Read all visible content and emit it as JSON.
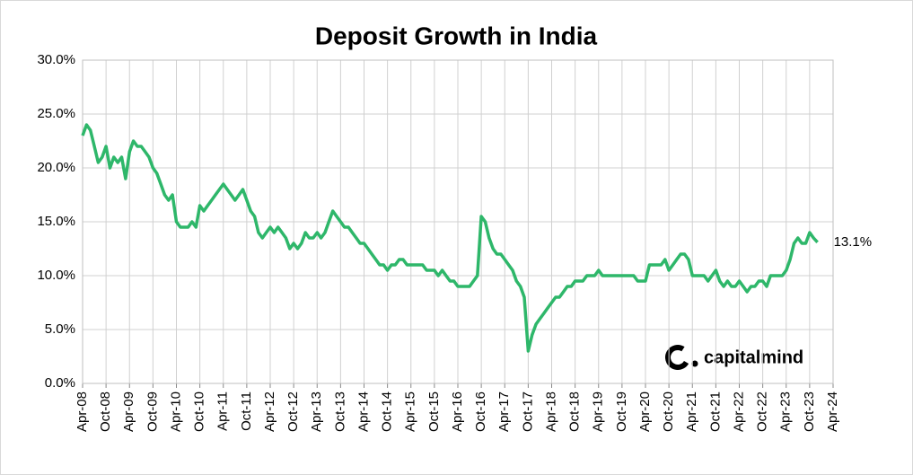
{
  "chart_data": {
    "type": "line",
    "title": "Deposit Growth in India",
    "x": [
      "2008-04",
      "2008-05",
      "2008-06",
      "2008-07",
      "2008-08",
      "2008-09",
      "2008-10",
      "2008-11",
      "2008-12",
      "2009-01",
      "2009-02",
      "2009-03",
      "2009-04",
      "2009-05",
      "2009-06",
      "2009-07",
      "2009-08",
      "2009-09",
      "2009-10",
      "2009-11",
      "2009-12",
      "2010-01",
      "2010-02",
      "2010-03",
      "2010-04",
      "2010-05",
      "2010-06",
      "2010-07",
      "2010-08",
      "2010-09",
      "2010-10",
      "2010-11",
      "2010-12",
      "2011-01",
      "2011-02",
      "2011-03",
      "2011-04",
      "2011-05",
      "2011-06",
      "2011-07",
      "2011-08",
      "2011-09",
      "2011-10",
      "2011-11",
      "2011-12",
      "2012-01",
      "2012-02",
      "2012-03",
      "2012-04",
      "2012-05",
      "2012-06",
      "2012-07",
      "2012-08",
      "2012-09",
      "2012-10",
      "2012-11",
      "2012-12",
      "2013-01",
      "2013-02",
      "2013-03",
      "2013-04",
      "2013-05",
      "2013-06",
      "2013-07",
      "2013-08",
      "2013-09",
      "2013-10",
      "2013-11",
      "2013-12",
      "2014-01",
      "2014-02",
      "2014-03",
      "2014-04",
      "2014-05",
      "2014-06",
      "2014-07",
      "2014-08",
      "2014-09",
      "2014-10",
      "2014-11",
      "2014-12",
      "2015-01",
      "2015-02",
      "2015-03",
      "2015-04",
      "2015-05",
      "2015-06",
      "2015-07",
      "2015-08",
      "2015-09",
      "2015-10",
      "2015-11",
      "2015-12",
      "2016-01",
      "2016-02",
      "2016-03",
      "2016-04",
      "2016-05",
      "2016-06",
      "2016-07",
      "2016-08",
      "2016-09",
      "2016-10",
      "2016-11",
      "2016-12",
      "2017-01",
      "2017-02",
      "2017-03",
      "2017-04",
      "2017-05",
      "2017-06",
      "2017-07",
      "2017-08",
      "2017-09",
      "2017-10",
      "2017-11",
      "2017-12",
      "2018-01",
      "2018-02",
      "2018-03",
      "2018-04",
      "2018-05",
      "2018-06",
      "2018-07",
      "2018-08",
      "2018-09",
      "2018-10",
      "2018-11",
      "2018-12",
      "2019-01",
      "2019-02",
      "2019-03",
      "2019-04",
      "2019-05",
      "2019-06",
      "2019-07",
      "2019-08",
      "2019-09",
      "2019-10",
      "2019-11",
      "2019-12",
      "2020-01",
      "2020-02",
      "2020-03",
      "2020-04",
      "2020-05",
      "2020-06",
      "2020-07",
      "2020-08",
      "2020-09",
      "2020-10",
      "2020-11",
      "2020-12",
      "2021-01",
      "2021-02",
      "2021-03",
      "2021-04",
      "2021-05",
      "2021-06",
      "2021-07",
      "2021-08",
      "2021-09",
      "2021-10",
      "2021-11",
      "2021-12",
      "2022-01",
      "2022-02",
      "2022-03",
      "2022-04",
      "2022-05",
      "2022-06",
      "2022-07",
      "2022-08",
      "2022-09",
      "2022-10",
      "2022-11",
      "2022-12",
      "2023-01",
      "2023-02",
      "2023-03",
      "2023-04",
      "2023-05",
      "2023-06",
      "2023-07",
      "2023-08",
      "2023-09",
      "2023-10",
      "2023-11",
      "2023-12"
    ],
    "series": [
      {
        "color": "#2eb76a",
        "values": [
          23.0,
          24.0,
          23.5,
          22.0,
          20.5,
          21.0,
          22.0,
          20.0,
          21.0,
          20.5,
          21.0,
          19.0,
          21.5,
          22.5,
          22.0,
          22.0,
          21.5,
          21.0,
          20.0,
          19.5,
          18.5,
          17.5,
          17.0,
          17.5,
          15.0,
          14.5,
          14.5,
          14.5,
          15.0,
          14.5,
          16.5,
          16.0,
          16.5,
          17.0,
          17.5,
          18.0,
          18.5,
          18.0,
          17.5,
          17.0,
          17.5,
          18.0,
          17.0,
          16.0,
          15.5,
          14.0,
          13.5,
          14.0,
          14.5,
          14.0,
          14.5,
          14.0,
          13.5,
          12.5,
          13.0,
          12.5,
          13.0,
          14.0,
          13.5,
          13.5,
          14.0,
          13.5,
          14.0,
          15.0,
          16.0,
          15.5,
          15.0,
          14.5,
          14.5,
          14.0,
          13.5,
          13.0,
          13.0,
          12.5,
          12.0,
          11.5,
          11.0,
          11.0,
          10.5,
          11.0,
          11.0,
          11.5,
          11.5,
          11.0,
          11.0,
          11.0,
          11.0,
          11.0,
          10.5,
          10.5,
          10.5,
          10.0,
          10.5,
          10.0,
          9.5,
          9.5,
          9.0,
          9.0,
          9.0,
          9.0,
          9.5,
          10.0,
          15.5,
          15.0,
          13.5,
          12.5,
          12.0,
          12.0,
          11.5,
          11.0,
          10.5,
          9.5,
          9.0,
          8.0,
          3.0,
          4.5,
          5.5,
          6.0,
          6.5,
          7.0,
          7.5,
          8.0,
          8.0,
          8.5,
          9.0,
          9.0,
          9.5,
          9.5,
          9.5,
          10.0,
          10.0,
          10.0,
          10.5,
          10.0,
          10.0,
          10.0,
          10.0,
          10.0,
          10.0,
          10.0,
          10.0,
          10.0,
          9.5,
          9.5,
          9.5,
          11.0,
          11.0,
          11.0,
          11.0,
          11.5,
          10.5,
          11.0,
          11.5,
          12.0,
          12.0,
          11.5,
          10.0,
          10.0,
          10.0,
          10.0,
          9.5,
          10.0,
          10.5,
          9.5,
          9.0,
          9.5,
          9.0,
          9.0,
          9.5,
          9.0,
          8.5,
          9.0,
          9.0,
          9.5,
          9.5,
          9.0,
          10.0,
          10.0,
          10.0,
          10.0,
          10.5,
          11.5,
          13.0,
          13.5,
          13.0,
          13.0,
          14.0,
          13.5,
          13.1
        ]
      }
    ],
    "annotations": [
      {
        "text": "13.1%",
        "x": "2023-12",
        "y": 13.1
      }
    ],
    "logo": "capitalmind",
    "ylim": [
      0,
      30
    ],
    "yticks": [
      {
        "value": 0,
        "label": "0.0%"
      },
      {
        "value": 5,
        "label": "5.0%"
      },
      {
        "value": 10,
        "label": "10.0%"
      },
      {
        "value": 15,
        "label": "15.0%"
      },
      {
        "value": 20,
        "label": "20.0%"
      },
      {
        "value": 25,
        "label": "25.0%"
      },
      {
        "value": 30,
        "label": "30.0%"
      }
    ],
    "xlim": [
      "2008-04",
      "2024-04"
    ],
    "xticks": [
      {
        "value": "2008-04",
        "label": "Apr-08"
      },
      {
        "value": "2008-10",
        "label": "Oct-08"
      },
      {
        "value": "2009-04",
        "label": "Apr-09"
      },
      {
        "value": "2009-10",
        "label": "Oct-09"
      },
      {
        "value": "2010-04",
        "label": "Apr-10"
      },
      {
        "value": "2010-10",
        "label": "Oct-10"
      },
      {
        "value": "2011-04",
        "label": "Apr-11"
      },
      {
        "value": "2011-10",
        "label": "Oct-11"
      },
      {
        "value": "2012-04",
        "label": "Apr-12"
      },
      {
        "value": "2012-10",
        "label": "Oct-12"
      },
      {
        "value": "2013-04",
        "label": "Apr-13"
      },
      {
        "value": "2013-10",
        "label": "Oct-13"
      },
      {
        "value": "2014-04",
        "label": "Apr-14"
      },
      {
        "value": "2014-10",
        "label": "Oct-14"
      },
      {
        "value": "2015-04",
        "label": "Apr-15"
      },
      {
        "value": "2015-10",
        "label": "Oct-15"
      },
      {
        "value": "2016-04",
        "label": "Apr-16"
      },
      {
        "value": "2016-10",
        "label": "Oct-16"
      },
      {
        "value": "2017-04",
        "label": "Apr-17"
      },
      {
        "value": "2017-10",
        "label": "Oct-17"
      },
      {
        "value": "2018-04",
        "label": "Apr-18"
      },
      {
        "value": "2018-10",
        "label": "Oct-18"
      },
      {
        "value": "2019-04",
        "label": "Apr-19"
      },
      {
        "value": "2019-10",
        "label": "Oct-19"
      },
      {
        "value": "2020-04",
        "label": "Apr-20"
      },
      {
        "value": "2020-10",
        "label": "Oct-20"
      },
      {
        "value": "2021-04",
        "label": "Apr-21"
      },
      {
        "value": "2021-10",
        "label": "Oct-21"
      },
      {
        "value": "2022-04",
        "label": "Apr-22"
      },
      {
        "value": "2022-10",
        "label": "Oct-22"
      },
      {
        "value": "2023-04",
        "label": "Apr-23"
      },
      {
        "value": "2023-10",
        "label": "Oct-23"
      },
      {
        "value": "2024-04",
        "label": "Apr-24"
      }
    ],
    "grid": true
  }
}
